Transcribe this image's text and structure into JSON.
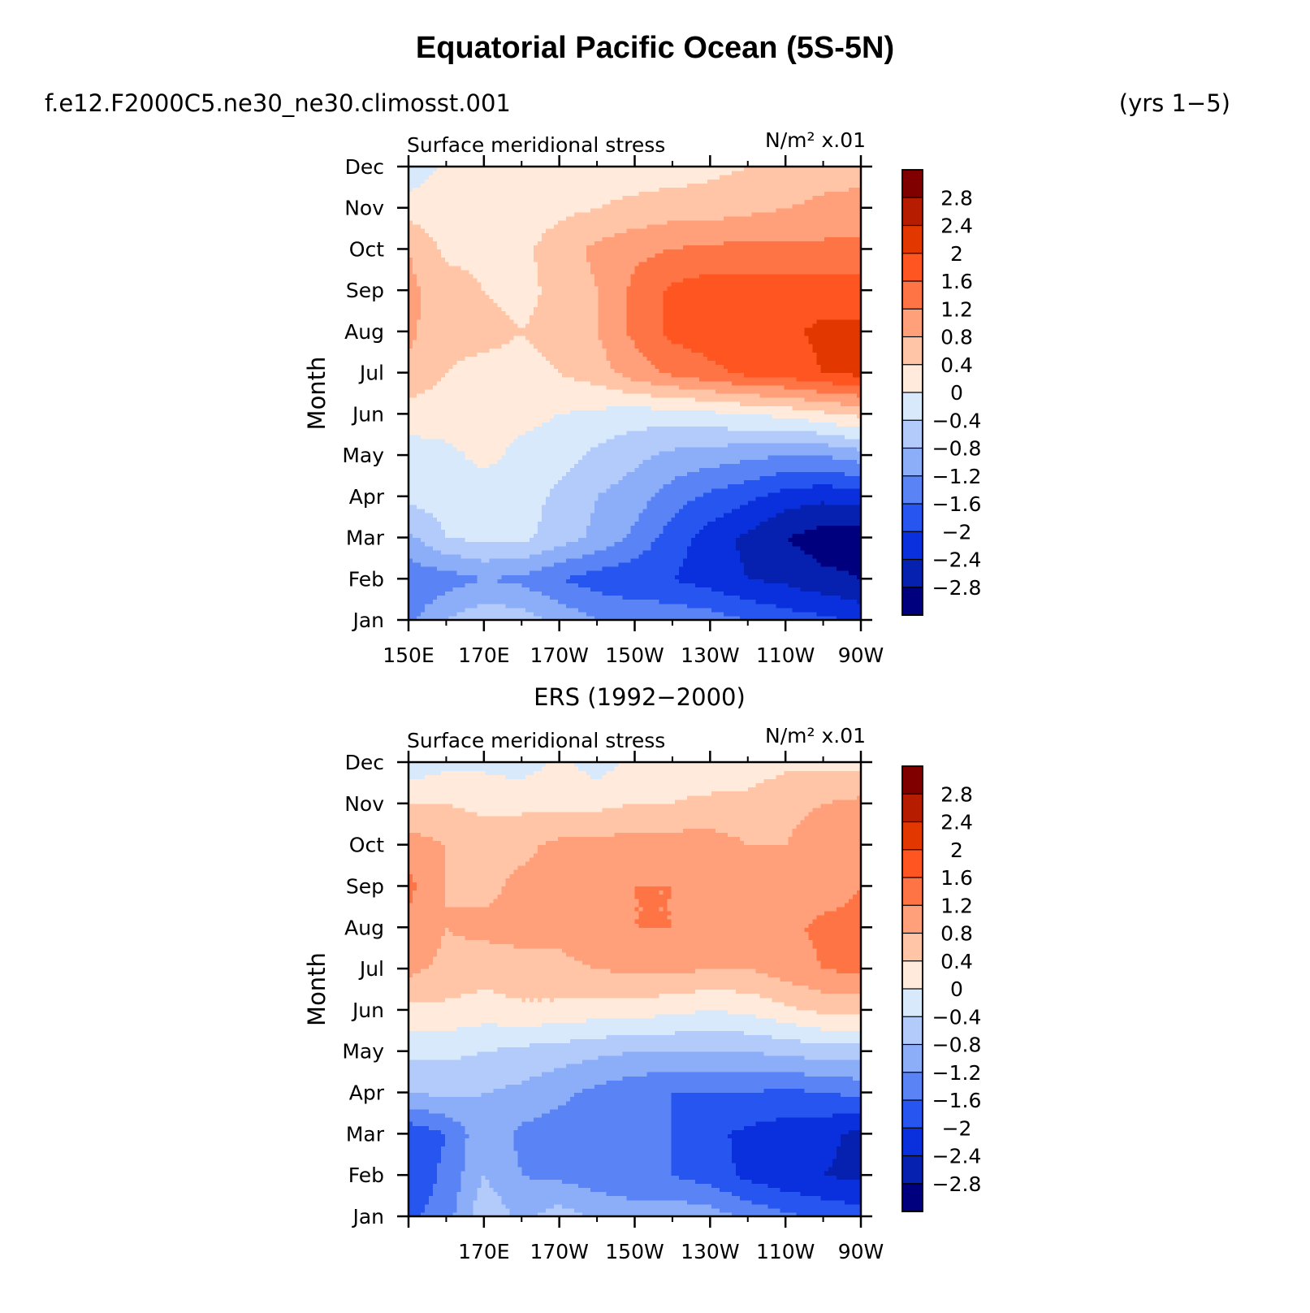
{
  "header": {
    "title": "Equatorial Pacific Ocean (5S-5N)",
    "case_name": "f.e12.F2000C5.ne30_ne30.climosst.001",
    "years": "(yrs 1−5)"
  },
  "colorbar": {
    "labels": [
      "2.8",
      "2.4",
      "2",
      "1.6",
      "1.2",
      "0.8",
      "0.4",
      "0",
      "−0.4",
      "−0.8",
      "−1.2",
      "−1.6",
      "−2",
      "−2.4",
      "−2.8"
    ],
    "colors": [
      "#800000",
      "#b51c00",
      "#e23800",
      "#ff5520",
      "#ff7445",
      "#ffa07a",
      "#ffc5a6",
      "#ffeadb",
      "#d7e9fa",
      "#b2cbfb",
      "#8caef9",
      "#5a84f5",
      "#2655f0",
      "#0a2fdd",
      "#0620b0",
      "#00007f"
    ]
  },
  "chart_data": [
    {
      "type": "heatmap",
      "title": "",
      "subtitle_left": "Surface meridional stress",
      "units_label": "N/m² x.01",
      "ylabel": "Month",
      "xlabel": "",
      "x_tick_labels": [
        "150E",
        "170E",
        "170W",
        "150W",
        "130W",
        "110W",
        "90W"
      ],
      "x_tick_lons": [
        150,
        170,
        190,
        210,
        230,
        250,
        270
      ],
      "xlim": [
        150,
        270
      ],
      "y_tick_labels": [
        "Jan",
        "Feb",
        "Mar",
        "Apr",
        "May",
        "Jun",
        "Jul",
        "Aug",
        "Sep",
        "Oct",
        "Nov",
        "Dec"
      ],
      "ylim": [
        1,
        12
      ],
      "levels": [
        -2.8,
        -2.4,
        -2.0,
        -1.6,
        -1.2,
        -0.8,
        -0.4,
        0,
        0.4,
        0.8,
        1.2,
        1.6,
        2.0,
        2.4,
        2.8
      ],
      "lon": [
        150,
        160,
        170,
        180,
        190,
        200,
        210,
        220,
        230,
        240,
        250,
        260,
        270
      ],
      "values": [
        [
          -1.3,
          -0.8,
          -0.5,
          -0.6,
          -0.9,
          -1.2,
          -1.3,
          -1.3,
          -1.4,
          -1.6,
          -1.8,
          -1.9,
          -2.1
        ],
        [
          -1.5,
          -1.4,
          -1.2,
          -1.3,
          -1.6,
          -1.8,
          -1.9,
          -2.0,
          -2.2,
          -2.4,
          -2.5,
          -2.7,
          -2.8
        ],
        [
          -0.9,
          -0.4,
          -0.3,
          -0.3,
          -0.6,
          -0.9,
          -1.3,
          -1.8,
          -2.2,
          -2.5,
          -2.8,
          -3.0,
          -3.0
        ],
        [
          -0.3,
          -0.2,
          -0.2,
          -0.2,
          -0.5,
          -0.8,
          -1.0,
          -1.4,
          -1.7,
          -1.9,
          -2.2,
          -2.3,
          -2.2
        ],
        [
          -0.2,
          -0.1,
          0.1,
          -0.1,
          -0.2,
          -0.5,
          -0.7,
          -0.9,
          -1.0,
          -1.1,
          -1.2,
          -1.2,
          -1.0
        ],
        [
          0.2,
          0.2,
          0.2,
          0.1,
          0.0,
          -0.1,
          -0.2,
          -0.2,
          -0.1,
          0.0,
          0.1,
          0.3,
          0.5
        ],
        [
          0.7,
          0.4,
          0.3,
          0.3,
          0.4,
          0.6,
          1.0,
          1.3,
          1.5,
          1.7,
          1.8,
          2.0,
          2.1
        ],
        [
          0.9,
          0.5,
          0.5,
          0.4,
          0.5,
          0.8,
          1.3,
          1.7,
          1.8,
          1.8,
          1.9,
          2.1,
          2.1
        ],
        [
          0.9,
          0.6,
          0.4,
          0.3,
          0.5,
          0.8,
          1.3,
          1.7,
          1.8,
          1.8,
          1.8,
          1.8,
          1.8
        ],
        [
          0.8,
          0.3,
          0.3,
          0.3,
          0.6,
          0.9,
          1.1,
          1.2,
          1.3,
          1.3,
          1.3,
          1.3,
          1.3
        ],
        [
          0.2,
          0.2,
          0.2,
          0.2,
          0.3,
          0.4,
          0.5,
          0.6,
          0.6,
          0.7,
          0.8,
          0.9,
          1.0
        ],
        [
          -0.3,
          0.1,
          0.1,
          0.0,
          0.1,
          0.2,
          0.2,
          0.2,
          0.3,
          0.4,
          0.5,
          0.6,
          0.6
        ]
      ]
    },
    {
      "type": "heatmap",
      "title": "ERS (1992−2000)",
      "subtitle_left": "Surface meridional stress",
      "units_label": "N/m² x.01",
      "ylabel": "Month",
      "xlabel": "",
      "x_tick_labels": [
        "",
        "170E",
        "170W",
        "150W",
        "130W",
        "110W",
        "90W"
      ],
      "x_tick_lons": [
        150,
        170,
        190,
        210,
        230,
        250,
        270
      ],
      "xlim": [
        150,
        270
      ],
      "y_tick_labels": [
        "Jan",
        "Feb",
        "Mar",
        "Apr",
        "May",
        "Jun",
        "Jul",
        "Aug",
        "Sep",
        "Oct",
        "Nov",
        "Dec"
      ],
      "ylim": [
        1,
        12
      ],
      "levels": [
        -2.8,
        -2.4,
        -2.0,
        -1.6,
        -1.2,
        -0.8,
        -0.4,
        0,
        0.4,
        0.8,
        1.2,
        1.6,
        2.0,
        2.4,
        2.8
      ],
      "lon": [
        150,
        160,
        170,
        180,
        190,
        200,
        210,
        220,
        230,
        240,
        250,
        260,
        270
      ],
      "values": [
        [
          -1.7,
          -1.4,
          -0.5,
          -0.9,
          -0.6,
          -0.9,
          -1.0,
          -0.9,
          -1.0,
          -1.3,
          -1.5,
          -1.7,
          -1.8
        ],
        [
          -1.9,
          -1.5,
          -0.8,
          -1.2,
          -1.3,
          -1.4,
          -1.5,
          -1.6,
          -1.8,
          -2.1,
          -2.3,
          -2.4,
          -2.5
        ],
        [
          -1.9,
          -1.6,
          -0.9,
          -1.3,
          -1.4,
          -1.5,
          -1.5,
          -1.6,
          -1.9,
          -2.1,
          -2.2,
          -2.3,
          -2.5
        ],
        [
          -0.8,
          -0.7,
          -0.8,
          -0.9,
          -1.1,
          -1.3,
          -1.5,
          -1.6,
          -1.6,
          -1.6,
          -1.7,
          -1.6,
          -1.5
        ],
        [
          -0.3,
          -0.3,
          -0.4,
          -0.5,
          -0.6,
          -0.7,
          -0.8,
          -0.8,
          -0.8,
          -0.8,
          -0.7,
          -0.6,
          -0.6
        ],
        [
          0.3,
          0.3,
          0.2,
          0.3,
          0.3,
          0.2,
          0.2,
          0.1,
          0.0,
          0.1,
          0.3,
          0.5,
          0.5
        ],
        [
          0.9,
          0.7,
          0.6,
          0.7,
          0.7,
          0.8,
          0.9,
          0.9,
          0.8,
          0.8,
          1.0,
          1.2,
          1.3
        ],
        [
          1.1,
          0.8,
          0.9,
          0.9,
          0.9,
          1.1,
          1.2,
          1.2,
          1.2,
          1.0,
          1.1,
          1.3,
          1.3
        ],
        [
          1.3,
          0.8,
          0.7,
          0.9,
          1.0,
          1.1,
          1.2,
          1.2,
          1.1,
          0.9,
          0.9,
          1.0,
          1.2
        ],
        [
          1.0,
          0.8,
          0.6,
          0.7,
          0.9,
          0.9,
          1.0,
          1.0,
          1.0,
          0.8,
          0.8,
          1.0,
          1.1
        ],
        [
          0.4,
          0.4,
          0.3,
          0.3,
          0.3,
          0.3,
          0.4,
          0.4,
          0.5,
          0.5,
          0.7,
          0.8,
          0.9
        ],
        [
          -0.3,
          -0.1,
          -0.1,
          -0.2,
          0.1,
          -0.2,
          0.1,
          0.2,
          0.1,
          0.2,
          0.3,
          0.3,
          0.3
        ]
      ]
    }
  ]
}
